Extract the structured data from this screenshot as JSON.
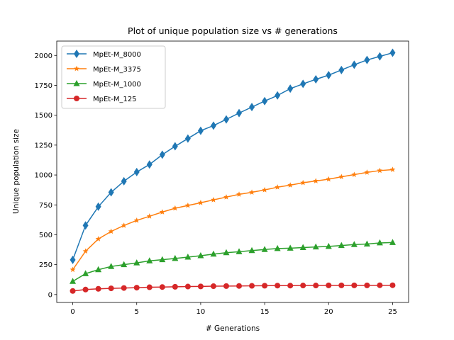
{
  "chart_data": {
    "type": "line",
    "title": "Plot of unique population size vs # generations",
    "xlabel": "# Generations",
    "ylabel": "Unique population size",
    "xlim": [
      -1.25,
      26.25
    ],
    "ylim": [
      -66,
      2120
    ],
    "xticks": [
      0,
      5,
      10,
      15,
      20,
      25
    ],
    "yticks": [
      0,
      250,
      500,
      750,
      1000,
      1250,
      1500,
      1750,
      2000
    ],
    "grid": false,
    "legend_position": "top-left",
    "x": [
      0,
      1,
      2,
      3,
      4,
      5,
      6,
      7,
      8,
      9,
      10,
      11,
      12,
      13,
      14,
      15,
      16,
      17,
      18,
      19,
      20,
      21,
      22,
      23,
      24,
      25
    ],
    "series": [
      {
        "name": "MpEt-M_8000",
        "color": "#1f77b4",
        "marker": "diamond",
        "values": [
          290,
          578,
          735,
          855,
          948,
          1025,
          1088,
          1170,
          1240,
          1305,
          1370,
          1413,
          1465,
          1518,
          1568,
          1618,
          1665,
          1722,
          1762,
          1800,
          1835,
          1878,
          1922,
          1962,
          1992,
          2022
        ]
      },
      {
        "name": "MpEt-M_3375",
        "color": "#ff7f0e",
        "marker": "star",
        "values": [
          208,
          362,
          465,
          528,
          578,
          620,
          655,
          690,
          722,
          745,
          768,
          792,
          815,
          838,
          855,
          875,
          898,
          915,
          935,
          950,
          965,
          985,
          1003,
          1022,
          1037,
          1045
        ]
      },
      {
        "name": "MpEt-M_1000",
        "color": "#2ca02c",
        "marker": "triangle",
        "values": [
          110,
          175,
          208,
          235,
          250,
          265,
          282,
          292,
          302,
          313,
          325,
          338,
          350,
          358,
          368,
          377,
          385,
          388,
          393,
          398,
          403,
          410,
          418,
          423,
          432,
          435
        ]
      },
      {
        "name": "MpEt-M_125",
        "color": "#d62728",
        "marker": "circle",
        "values": [
          30,
          42,
          48,
          52,
          55,
          58,
          61,
          63,
          65,
          67,
          68,
          70,
          71,
          72,
          73,
          74,
          75,
          75,
          76,
          76,
          77,
          77,
          77,
          77,
          78,
          78
        ]
      }
    ]
  }
}
